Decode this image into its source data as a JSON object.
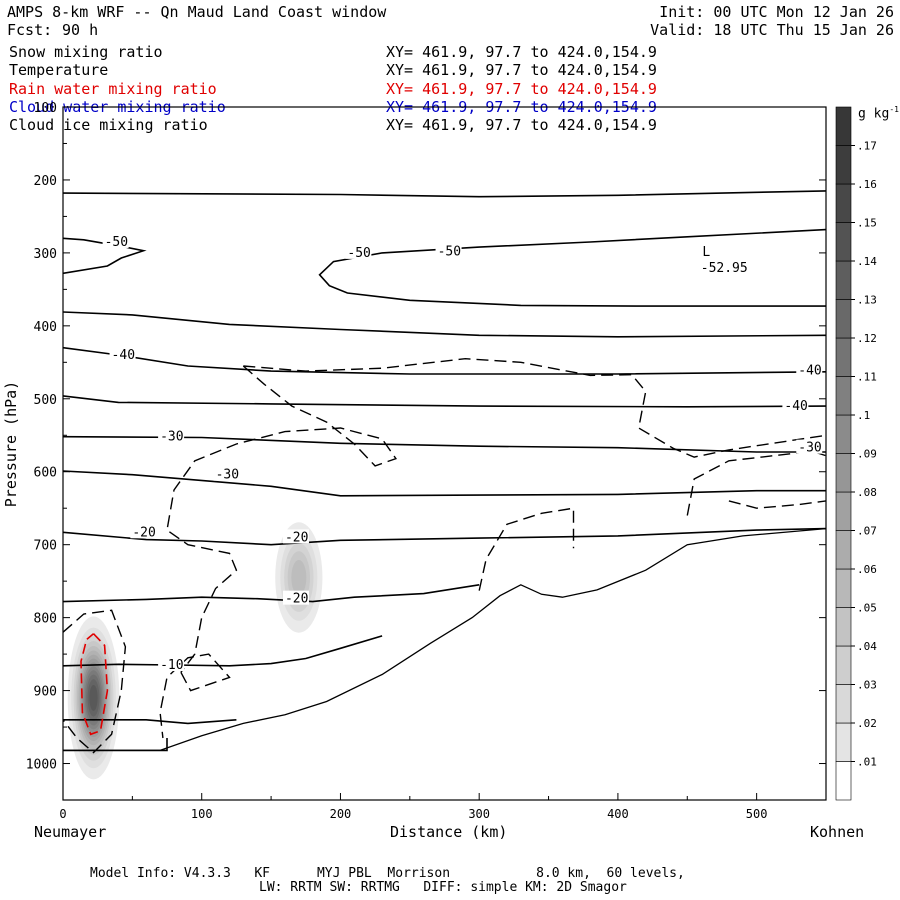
{
  "header": {
    "title": "AMPS 8-km WRF -- Qn Maud Land Coast window",
    "fcst_label": "Fcst:",
    "fcst_value": "90 h",
    "init": "Init: 00 UTC Mon 12 Jan 26",
    "valid": "Valid: 18 UTC Thu 15 Jan 26"
  },
  "fields": [
    {
      "name": "Snow mixing ratio",
      "xy": "XY= 461.9, 97.7 to 424.0,154.9",
      "color": "#000000"
    },
    {
      "name": "Temperature",
      "xy": "XY= 461.9, 97.7 to 424.0,154.9",
      "color": "#000000"
    },
    {
      "name": "Rain water mixing ratio",
      "xy": "XY= 461.9, 97.7 to 424.0,154.9",
      "color": "#e00000"
    },
    {
      "name": "Cloud water mixing ratio",
      "xy": "XY= 461.9, 97.7 to 424.0,154.9",
      "color": "#0000c8"
    },
    {
      "name": "Cloud ice mixing ratio",
      "xy": "XY= 461.9, 97.7 to 424.0,154.9",
      "color": "#000000"
    }
  ],
  "footer": {
    "line1": "Model Info: V4.3.3   KF      MYJ PBL  Morrison           8.0 km,  60 levels,",
    "line2": "LW: RRTM SW: RRTMG   DIFF: simple KM: 2D Smagor"
  },
  "chart_data": {
    "type": "contour cross-section",
    "xlabel": "Distance (km)",
    "ylabel": "Pressure (hPa)",
    "x_left_label": "Neumayer",
    "x_right_label": "Kohnen",
    "xlim": [
      0,
      550
    ],
    "ylim": [
      1050,
      100
    ],
    "x_ticks": [
      0,
      100,
      200,
      300,
      400,
      500
    ],
    "y_ticks": [
      100,
      200,
      300,
      400,
      500,
      600,
      700,
      800,
      900,
      1000
    ],
    "temperature_contours": [
      {
        "label": "-50",
        "points": [
          [
            0,
            280
          ],
          [
            15,
            282
          ],
          [
            30,
            287
          ],
          [
            45,
            292
          ],
          [
            58,
            297
          ],
          [
            42,
            307
          ],
          [
            32,
            318
          ],
          [
            0,
            328
          ]
        ]
      },
      {
        "label": "-50",
        "points": [
          [
            550,
            268
          ],
          [
            450,
            278
          ],
          [
            380,
            285
          ],
          [
            300,
            292
          ],
          [
            230,
            300
          ],
          [
            195,
            312
          ],
          [
            185,
            330
          ],
          [
            192,
            345
          ],
          [
            205,
            355
          ],
          [
            250,
            365
          ],
          [
            330,
            372
          ],
          [
            420,
            373
          ],
          [
            550,
            373
          ]
        ]
      },
      {
        "label": "",
        "points": [
          [
            0,
            218
          ],
          [
            200,
            220
          ],
          [
            300,
            223
          ],
          [
            400,
            221
          ],
          [
            500,
            217
          ],
          [
            550,
            215
          ]
        ]
      },
      {
        "label": "",
        "points": [
          [
            0,
            381
          ],
          [
            50,
            385
          ],
          [
            120,
            398
          ],
          [
            200,
            405
          ],
          [
            300,
            413
          ],
          [
            400,
            415
          ],
          [
            550,
            413
          ]
        ]
      },
      {
        "label": "-40",
        "points": [
          [
            0,
            430
          ],
          [
            40,
            440
          ],
          [
            90,
            455
          ],
          [
            150,
            462
          ],
          [
            250,
            466
          ],
          [
            400,
            466
          ],
          [
            550,
            463
          ]
        ]
      },
      {
        "label": "-40",
        "points": [
          [
            0,
            496
          ],
          [
            40,
            505
          ],
          [
            150,
            507
          ],
          [
            300,
            510
          ],
          [
            450,
            511
          ],
          [
            550,
            510
          ]
        ]
      },
      {
        "label": "-30",
        "points": [
          [
            0,
            552
          ],
          [
            100,
            553
          ],
          [
            200,
            561
          ],
          [
            300,
            565
          ],
          [
            400,
            567
          ],
          [
            500,
            573
          ],
          [
            550,
            573
          ]
        ]
      },
      {
        "label": "-30",
        "points": [
          [
            0,
            599
          ],
          [
            50,
            604
          ],
          [
            150,
            620
          ],
          [
            200,
            633
          ],
          [
            300,
            632
          ],
          [
            400,
            631
          ],
          [
            500,
            626
          ],
          [
            550,
            626
          ]
        ]
      },
      {
        "label": "-20",
        "points": [
          [
            0,
            683
          ],
          [
            60,
            693
          ],
          [
            100,
            695
          ],
          [
            150,
            700
          ],
          [
            200,
            694
          ],
          [
            300,
            691
          ],
          [
            400,
            688
          ],
          [
            500,
            680
          ],
          [
            550,
            678
          ]
        ]
      },
      {
        "label": "-20",
        "points": [
          [
            0,
            778
          ],
          [
            60,
            775
          ],
          [
            100,
            772
          ],
          [
            140,
            774
          ],
          [
            180,
            778
          ],
          [
            210,
            772
          ],
          [
            260,
            767
          ],
          [
            300,
            755
          ]
        ]
      },
      {
        "label": "-10",
        "points": [
          [
            0,
            866
          ],
          [
            40,
            864
          ],
          [
            80,
            865
          ],
          [
            120,
            866
          ],
          [
            150,
            863
          ],
          [
            175,
            856
          ],
          [
            200,
            842
          ],
          [
            230,
            825
          ]
        ]
      },
      {
        "label": "",
        "points": [
          [
            0,
            940
          ],
          [
            30,
            940
          ],
          [
            60,
            940
          ],
          [
            90,
            945
          ],
          [
            125,
            940
          ]
        ]
      },
      {
        "label": "",
        "points": [
          [
            0,
            982
          ],
          [
            60,
            982
          ],
          [
            75,
            982
          ],
          [
            75,
            965
          ]
        ]
      }
    ],
    "terrain": [
      [
        0,
        982
      ],
      [
        70,
        982
      ],
      [
        100,
        962
      ],
      [
        130,
        945
      ],
      [
        160,
        933
      ],
      [
        190,
        915
      ],
      [
        230,
        878
      ],
      [
        265,
        835
      ],
      [
        295,
        800
      ],
      [
        315,
        770
      ],
      [
        330,
        755
      ],
      [
        345,
        768
      ],
      [
        360,
        772
      ],
      [
        385,
        762
      ],
      [
        420,
        735
      ],
      [
        450,
        700
      ],
      [
        490,
        688
      ],
      [
        550,
        678
      ]
    ],
    "snow_contours_dashed": [
      {
        "points": [
          [
            130,
            455
          ],
          [
            175,
            462
          ],
          [
            230,
            458
          ],
          [
            290,
            445
          ],
          [
            330,
            450
          ],
          [
            380,
            468
          ],
          [
            410,
            467
          ],
          [
            420,
            490
          ],
          [
            415,
            540
          ],
          [
            440,
            568
          ],
          [
            455,
            580
          ],
          [
            480,
            570
          ],
          [
            550,
            550
          ]
        ]
      },
      {
        "points": [
          [
            130,
            455
          ],
          [
            145,
            480
          ],
          [
            165,
            510
          ],
          [
            190,
            532
          ],
          [
            210,
            562
          ],
          [
            225,
            592
          ],
          [
            240,
            582
          ],
          [
            230,
            555
          ],
          [
            200,
            540
          ],
          [
            160,
            545
          ],
          [
            125,
            562
          ],
          [
            95,
            585
          ],
          [
            80,
            625
          ],
          [
            75,
            680
          ],
          [
            90,
            700
          ],
          [
            120,
            712
          ],
          [
            125,
            735
          ],
          [
            110,
            760
          ],
          [
            100,
            800
          ],
          [
            95,
            850
          ],
          [
            85,
            875
          ]
        ]
      },
      {
        "points": [
          [
            85,
            875
          ],
          [
            92,
            900
          ],
          [
            120,
            882
          ],
          [
            105,
            850
          ],
          [
            90,
            855
          ],
          [
            75,
            882
          ],
          [
            70,
            930
          ],
          [
            72,
            965
          ]
        ]
      },
      {
        "points": [
          [
            300,
            763
          ],
          [
            305,
            720
          ],
          [
            320,
            672
          ],
          [
            345,
            657
          ],
          [
            368,
            650
          ],
          [
            368,
            705
          ]
        ]
      },
      {
        "points": [
          [
            450,
            660
          ],
          [
            455,
            610
          ],
          [
            480,
            585
          ],
          [
            540,
            572
          ],
          [
            550,
            578
          ]
        ]
      },
      {
        "points": [
          [
            480,
            640
          ],
          [
            500,
            650
          ],
          [
            530,
            645
          ],
          [
            550,
            640
          ]
        ]
      },
      {
        "points": [
          [
            0,
            820
          ],
          [
            15,
            795
          ],
          [
            35,
            790
          ],
          [
            45,
            840
          ],
          [
            42,
            900
          ],
          [
            35,
            960
          ],
          [
            22,
            985
          ],
          [
            10,
            965
          ],
          [
            0,
            940
          ]
        ]
      }
    ],
    "cloud_ice": [
      {
        "x": 22,
        "p": 910,
        "sx": 8,
        "sp": 48,
        "peak": 0.15
      },
      {
        "x": 170,
        "p": 745,
        "sx": 9,
        "sp": 40,
        "peak": 0.06
      }
    ],
    "rain_water_contour": [
      [
        22,
        822
      ],
      [
        30,
        838
      ],
      [
        32,
        900
      ],
      [
        27,
        955
      ],
      [
        20,
        960
      ],
      [
        14,
        930
      ],
      [
        13,
        860
      ],
      [
        17,
        830
      ],
      [
        22,
        822
      ]
    ],
    "low_center": {
      "label": "L",
      "value": "-52.95",
      "x": 468,
      "p": 318
    },
    "colorbar": {
      "unit": "g kg",
      "unit_sup": "-1",
      "levels": [
        0.01,
        0.02,
        0.03,
        0.04,
        0.05,
        0.06,
        0.07,
        0.08,
        0.09,
        0.1,
        0.11,
        0.12,
        0.13,
        0.14,
        0.15,
        0.16,
        0.17
      ],
      "labels": [
        ".01",
        ".02",
        ".03",
        ".04",
        ".05",
        ".06",
        ".07",
        ".08",
        ".09",
        ".1",
        ".11",
        ".12",
        ".13",
        ".14",
        ".15",
        ".16",
        ".17"
      ]
    }
  }
}
